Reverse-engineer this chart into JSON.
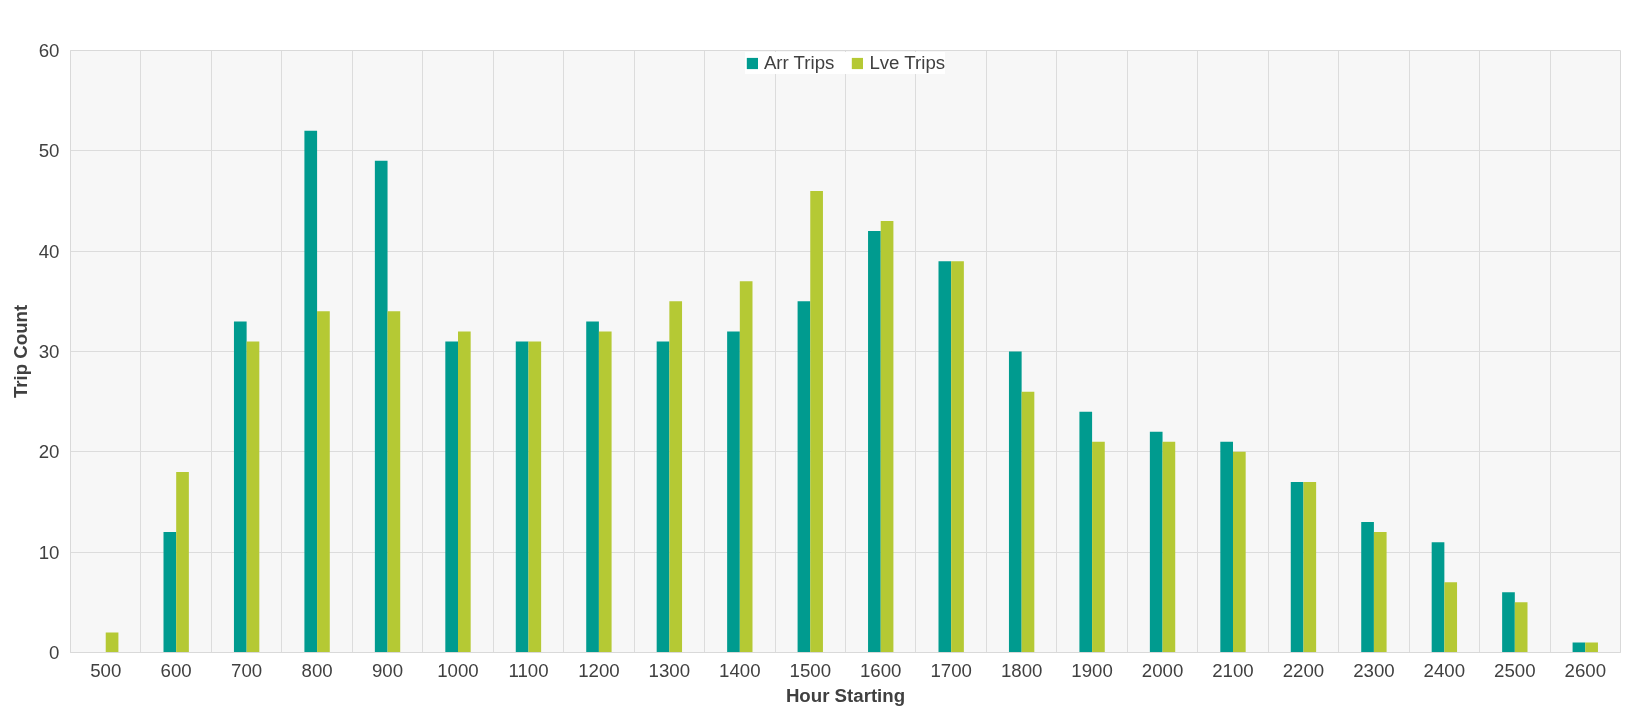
{
  "chart_data": {
    "type": "bar",
    "xlabel": "Hour Starting",
    "ylabel": "Trip Count",
    "categories": [
      "500",
      "600",
      "700",
      "800",
      "900",
      "1000",
      "1100",
      "1200",
      "1300",
      "1400",
      "1500",
      "1600",
      "1700",
      "1800",
      "1900",
      "2000",
      "2100",
      "2200",
      "2300",
      "2400",
      "2500",
      "2600"
    ],
    "series": [
      {
        "name": "Arr Trips",
        "color": "#009b8f",
        "values": [
          0,
          12,
          33,
          52,
          49,
          31,
          31,
          33,
          31,
          32,
          35,
          42,
          39,
          30,
          24,
          22,
          21,
          17,
          13,
          11,
          6,
          1
        ]
      },
      {
        "name": "Lve Trips",
        "color": "#b5c934",
        "values": [
          2,
          18,
          31,
          34,
          34,
          32,
          31,
          32,
          35,
          37,
          46,
          43,
          39,
          26,
          21,
          21,
          20,
          17,
          12,
          7,
          5,
          1
        ]
      }
    ],
    "ylim": [
      0,
      60
    ],
    "yticks": [
      0,
      10,
      20,
      30,
      40,
      50,
      60
    ],
    "grid": true,
    "legend": "top"
  }
}
